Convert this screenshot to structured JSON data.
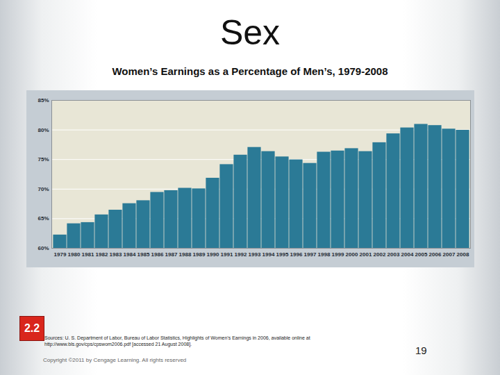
{
  "chart_data": {
    "type": "bar",
    "title": "Women’s Earnings as a Percentage of Men’s, 1979-2008",
    "categories": [
      "1979",
      "1980",
      "1981",
      "1982",
      "1983",
      "1984",
      "1985",
      "1986",
      "1987",
      "1988",
      "1989",
      "1990",
      "1991",
      "1992",
      "1993",
      "1994",
      "1995",
      "1996",
      "1997",
      "1998",
      "1999",
      "2000",
      "2001",
      "2002",
      "2003",
      "2004",
      "2005",
      "2006",
      "2007",
      "2008"
    ],
    "values": [
      62.3,
      64.2,
      64.4,
      65.7,
      66.5,
      67.6,
      68.1,
      69.5,
      69.8,
      70.2,
      70.1,
      71.9,
      74.2,
      75.8,
      77.1,
      76.4,
      75.5,
      75.0,
      74.4,
      76.3,
      76.5,
      76.9,
      76.4,
      77.9,
      79.4,
      80.4,
      81.0,
      80.8,
      80.2,
      80.0
    ],
    "color": "#2b7a96",
    "ylim": [
      60,
      85
    ],
    "yticks": [
      {
        "value": 60,
        "label": "60%"
      },
      {
        "value": 65,
        "label": "65%"
      },
      {
        "value": 70,
        "label": "70%"
      },
      {
        "value": 75,
        "label": "75%"
      },
      {
        "value": 80,
        "label": "80%"
      },
      {
        "value": 85,
        "label": "85%"
      }
    ],
    "grid": true
  },
  "slide": {
    "heading": "Sex",
    "badge": "2.2",
    "source": "Sources: U. S. Department of Labor, Bureau of Labor Statistics, Highlights of Women’s Earnings in 2006, available online at http://www.bls.gov/cps/cpswom2006.pdf [accessed 21 August 2008].",
    "page": "19",
    "copyright": "Copyright ©2011 by Cengage Learning. All rights reserved"
  }
}
